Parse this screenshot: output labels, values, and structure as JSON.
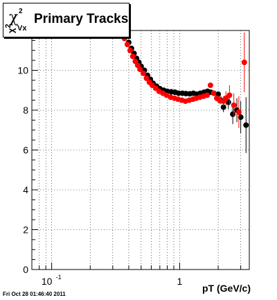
{
  "chart_data": {
    "type": "scatter",
    "title": "Primary Tracks",
    "title_symbol": {
      "base": "χ",
      "sup": "2",
      "sub": "Vx"
    },
    "ylabel_symbol": {
      "base": "χ",
      "sup": "2"
    },
    "xlabel": "pT (GeV/c)",
    "xscale": "log",
    "xlim": [
      0.07,
      3.5
    ],
    "ylim": [
      0,
      12
    ],
    "x_tick_labels": [
      "10",
      "-1",
      "1"
    ],
    "y_tick_labels": [
      "0",
      "2",
      "4",
      "6",
      "8",
      "10"
    ],
    "grid": true,
    "series": [
      {
        "color": "#000000",
        "points": [
          [
            0.38,
            11.7
          ],
          [
            0.4,
            11.4
          ],
          [
            0.42,
            11.1
          ],
          [
            0.44,
            10.85
          ],
          [
            0.46,
            10.6
          ],
          [
            0.48,
            10.4
          ],
          [
            0.5,
            10.2
          ],
          [
            0.53,
            10.0
          ],
          [
            0.56,
            9.75
          ],
          [
            0.59,
            9.55
          ],
          [
            0.62,
            9.35
          ],
          [
            0.66,
            9.2
          ],
          [
            0.7,
            9.08
          ],
          [
            0.75,
            9.0
          ],
          [
            0.8,
            8.95
          ],
          [
            0.86,
            8.92
          ],
          [
            0.92,
            8.9
          ],
          [
            0.98,
            8.85
          ],
          [
            1.05,
            8.85
          ],
          [
            1.12,
            8.83
          ],
          [
            1.2,
            8.82
          ],
          [
            1.28,
            8.85
          ],
          [
            1.36,
            8.8
          ],
          [
            1.45,
            8.85
          ],
          [
            1.55,
            8.9
          ],
          [
            1.65,
            8.95
          ],
          [
            1.75,
            8.9
          ],
          [
            1.85,
            8.85
          ],
          [
            2.0,
            8.8
          ],
          [
            2.1,
            8.5
          ],
          [
            2.2,
            8.15
          ],
          [
            2.4,
            8.4
          ],
          [
            2.6,
            7.8
          ],
          [
            2.8,
            8.0
          ],
          [
            3.0,
            7.65
          ],
          [
            3.3,
            7.25
          ]
        ],
        "errors": [
          0,
          0,
          0,
          0,
          0,
          0,
          0,
          0,
          0,
          0,
          0,
          0,
          0,
          0,
          0,
          0,
          0,
          0,
          0,
          0,
          0,
          0,
          0,
          0,
          0,
          0.05,
          0.08,
          0.1,
          0.15,
          0.2,
          0.25,
          0.35,
          0.5,
          0.6,
          0.8,
          1.4
        ]
      },
      {
        "color": "#ff0000",
        "points": [
          [
            0.37,
            11.6
          ],
          [
            0.39,
            11.3
          ],
          [
            0.41,
            11.0
          ],
          [
            0.43,
            10.7
          ],
          [
            0.45,
            10.45
          ],
          [
            0.47,
            10.25
          ],
          [
            0.49,
            10.05
          ],
          [
            0.52,
            9.85
          ],
          [
            0.55,
            9.6
          ],
          [
            0.58,
            9.4
          ],
          [
            0.61,
            9.25
          ],
          [
            0.65,
            9.1
          ],
          [
            0.69,
            8.95
          ],
          [
            0.74,
            8.85
          ],
          [
            0.79,
            8.75
          ],
          [
            0.85,
            8.65
          ],
          [
            0.91,
            8.6
          ],
          [
            0.97,
            8.55
          ],
          [
            1.04,
            8.5
          ],
          [
            1.11,
            8.45
          ],
          [
            1.19,
            8.5
          ],
          [
            1.27,
            8.55
          ],
          [
            1.35,
            8.6
          ],
          [
            1.44,
            8.65
          ],
          [
            1.54,
            8.7
          ],
          [
            1.64,
            8.75
          ],
          [
            1.74,
            9.25
          ],
          [
            1.84,
            8.85
          ],
          [
            1.95,
            8.6
          ],
          [
            2.05,
            8.5
          ],
          [
            2.2,
            8.45
          ],
          [
            2.3,
            8.6
          ],
          [
            2.45,
            8.75
          ],
          [
            2.65,
            8.25
          ],
          [
            2.9,
            7.9
          ],
          [
            3.2,
            10.4
          ]
        ],
        "errors": [
          0,
          0,
          0,
          0,
          0,
          0,
          0,
          0,
          0,
          0,
          0,
          0,
          0,
          0,
          0,
          0,
          0,
          0,
          0,
          0,
          0,
          0,
          0,
          0,
          0,
          0.05,
          0.08,
          0.1,
          0.15,
          0.2,
          0.25,
          0.35,
          0.5,
          0.6,
          0.8,
          1.5
        ]
      }
    ]
  },
  "footer": {
    "timestamp": "Fri Oct 28 01:46:40 2011"
  }
}
